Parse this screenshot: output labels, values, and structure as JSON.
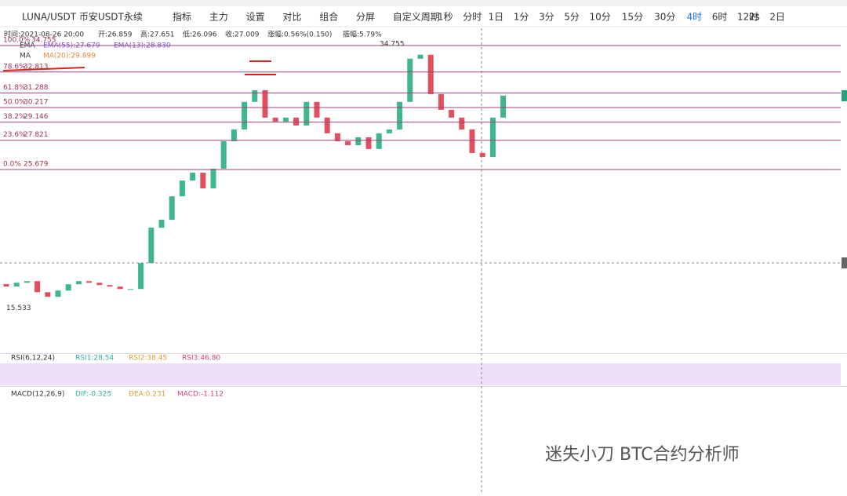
{
  "toolbar": {
    "symbol": "LUNA/USDT 币安USDT永续",
    "tools": [
      "指标",
      "主力",
      "设置",
      "对比",
      "组合",
      "分屏",
      "自定义周期"
    ],
    "intervals": [
      "1秒",
      "分时",
      "1日",
      "1分",
      "3分",
      "5分",
      "10分",
      "15分",
      "30分",
      "4时",
      "6时",
      "12时",
      "2日"
    ],
    "active_interval": "4时",
    "speed": "2s"
  },
  "info": [
    "时间:2021-08-26 20:00",
    "开:26.859",
    "高:27.651",
    "低:26.096",
    "收:27.009",
    "涨幅:0.56%(0.150)",
    "振幅:5.79%"
  ],
  "legend": [
    [
      "EMA",
      "EMA(55):27.679",
      "EMA(13):28.830"
    ],
    [
      "MA",
      "MA(20):29.899"
    ]
  ],
  "fib": [
    {
      "ratio": "100.0%",
      "price": 34.755
    },
    {
      "ratio": "78.6%",
      "price": 32.813
    },
    {
      "ratio": "61.8%",
      "price": 31.288
    },
    {
      "ratio": "50.0%",
      "price": 30.217
    },
    {
      "ratio": "38.2%",
      "price": 29.146
    },
    {
      "ratio": "23.6%",
      "price": 27.821
    },
    {
      "ratio": "0.0%",
      "price": 25.679
    }
  ],
  "high_label": 34.755,
  "low_label": 15.533,
  "candles": {
    "open": [
      17.3,
      17.11,
      17.39,
      17.51,
      16.7,
      16.36,
      16.82,
      17.28,
      17.51,
      17.39,
      17.22,
      17.11,
      16.93,
      16.93,
      18.83,
      21.42,
      22.0,
      23.72,
      24.87,
      25.45,
      24.3,
      25.74,
      27.75,
      28.61,
      30.63,
      31.49,
      29.48,
      29.19,
      29.48,
      28.9,
      30.63,
      29.48,
      28.33,
      27.75,
      27.46,
      28.04,
      27.18,
      28.33,
      28.61,
      30.63,
      33.79,
      34.08,
      31.2,
      30.05,
      29.48,
      28.61,
      26.89,
      26.6,
      29.48
    ],
    "close": [
      17.11,
      17.39,
      17.51,
      16.7,
      16.36,
      16.82,
      17.28,
      17.51,
      17.39,
      17.22,
      17.11,
      16.93,
      16.93,
      18.83,
      21.42,
      22.0,
      23.72,
      24.87,
      25.45,
      24.3,
      25.74,
      27.75,
      28.61,
      30.63,
      31.49,
      29.48,
      29.19,
      29.48,
      28.9,
      30.63,
      29.48,
      28.33,
      27.75,
      27.46,
      28.04,
      27.18,
      28.33,
      28.61,
      30.63,
      33.79,
      34.08,
      31.2,
      30.05,
      29.48,
      28.61,
      26.89,
      26.6,
      29.48,
      31.09
    ]
  },
  "rsi": {
    "title": "RSI(6,12,24)",
    "values": [
      "RSI1:28.54",
      "RSI2:38.45",
      "RSI3:46.80"
    ]
  },
  "macd": {
    "title": "MACD(12,26,9)",
    "values": [
      "DIF:-0.325",
      "DEA:0.231",
      "MACD:-1.112"
    ]
  },
  "watermark": "迷失小刀 BTC合约分析师"
}
